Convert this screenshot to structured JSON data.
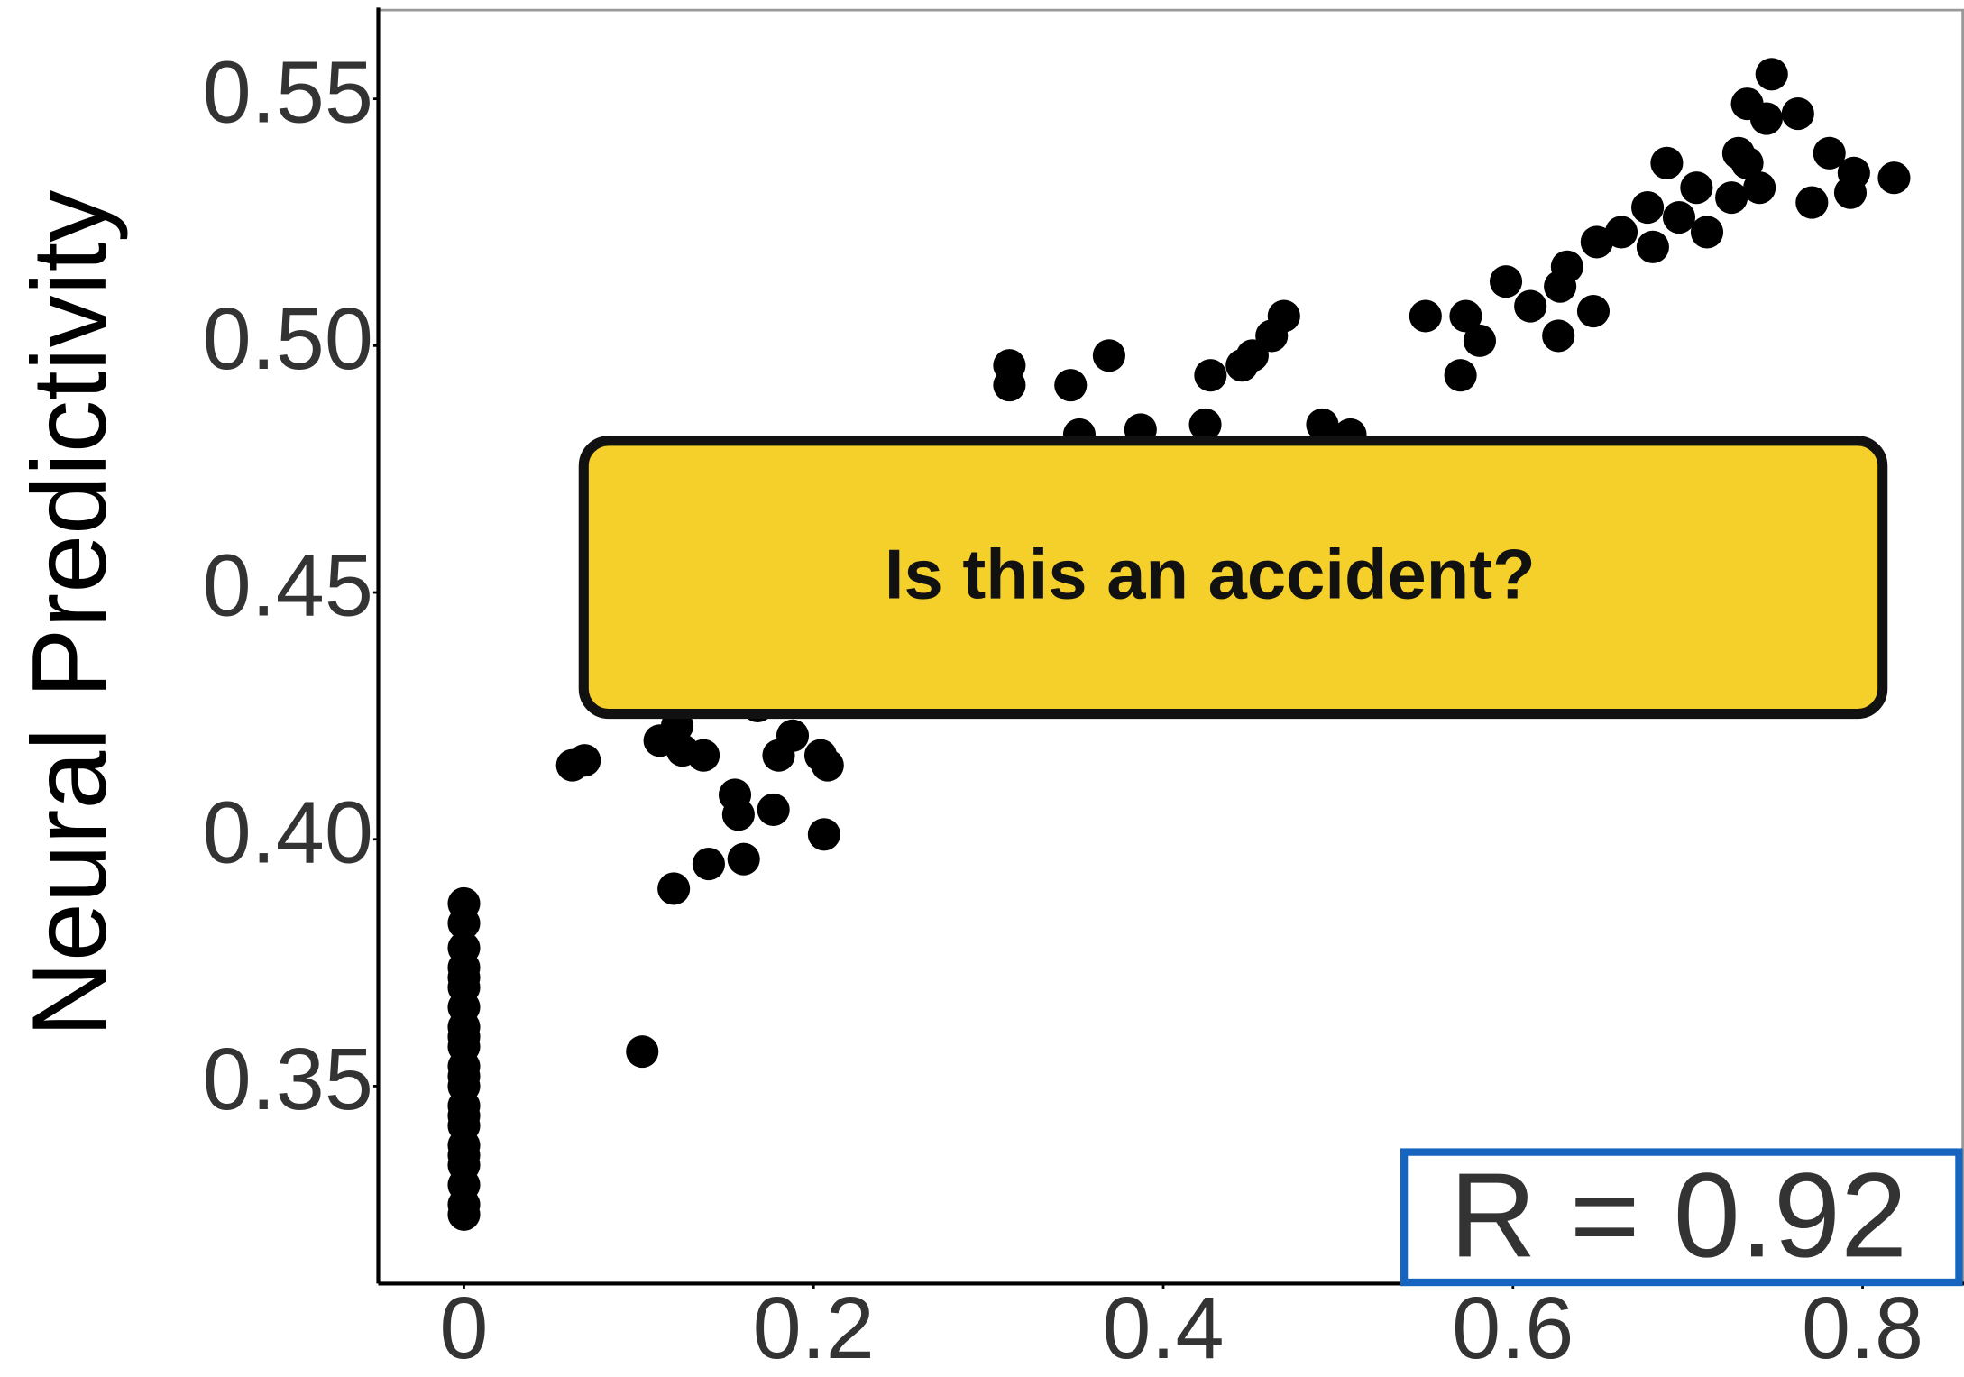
{
  "chart_data": {
    "type": "scatter",
    "ylabel": "Neural Predictivity",
    "annotation": "R = 0.92",
    "callout": "Is this an accident?",
    "color": "#000000",
    "xlim": [
      -0.049,
      0.858
    ],
    "ylim": [
      0.31,
      0.568
    ],
    "xticks": [
      0,
      0.2,
      0.4,
      0.6,
      0.8
    ],
    "yticks": [
      0.35,
      {
        "value": 0.4,
        "label": "0.40"
      },
      0.45,
      {
        "value": 0.5,
        "label": "0.50"
      },
      0.55
    ],
    "x": [
      0,
      0,
      0,
      0,
      0,
      0,
      0,
      0,
      0,
      0,
      0,
      0,
      0,
      0,
      0,
      0,
      0,
      0,
      0,
      0,
      0,
      0,
      0.102,
      0.12,
      0.14,
      0.16,
      0.157,
      0.177,
      0.206,
      0.155,
      0.062,
      0.069,
      0.112,
      0.125,
      0.137,
      0.18,
      0.188,
      0.204,
      0.208,
      0.122,
      0.168,
      0.312,
      0.312,
      0.347,
      0.369,
      0.387,
      0.424,
      0.427,
      0.445,
      0.451,
      0.462,
      0.469,
      0.491,
      0.507,
      0.352,
      0.55,
      0.57,
      0.573,
      0.581,
      0.596,
      0.61,
      0.626,
      0.627,
      0.631,
      0.646,
      0.648,
      0.662,
      0.677,
      0.68,
      0.688,
      0.695,
      0.705,
      0.711,
      0.725,
      0.729,
      0.741,
      0.734,
      0.748,
      0.745,
      0.763,
      0.781,
      0.771,
      0.793,
      0.818,
      0.795,
      0.734
    ],
    "values": [
      0.387,
      0.383,
      0.378,
      0.374,
      0.37,
      0.366,
      0.362,
      0.358,
      0.354,
      0.35,
      0.346,
      0.342,
      0.338,
      0.334,
      0.33,
      0.326,
      0.324,
      0.372,
      0.36,
      0.352,
      0.344,
      0.336,
      0.357,
      0.39,
      0.395,
      0.396,
      0.405,
      0.406,
      0.401,
      0.409,
      0.415,
      0.416,
      0.42,
      0.418,
      0.417,
      0.417,
      0.421,
      0.417,
      0.415,
      0.423,
      0.427,
      0.496,
      0.492,
      0.492,
      0.498,
      0.483,
      0.484,
      0.494,
      0.496,
      0.498,
      0.502,
      0.506,
      0.484,
      0.482,
      0.482,
      0.506,
      0.494,
      0.506,
      0.501,
      0.513,
      0.508,
      0.502,
      0.512,
      0.516,
      0.507,
      0.521,
      0.523,
      0.528,
      0.52,
      0.537,
      0.526,
      0.532,
      0.523,
      0.53,
      0.539,
      0.532,
      0.549,
      0.555,
      0.546,
      0.547,
      0.539,
      0.529,
      0.531,
      0.534,
      0.535,
      0.537
    ]
  }
}
